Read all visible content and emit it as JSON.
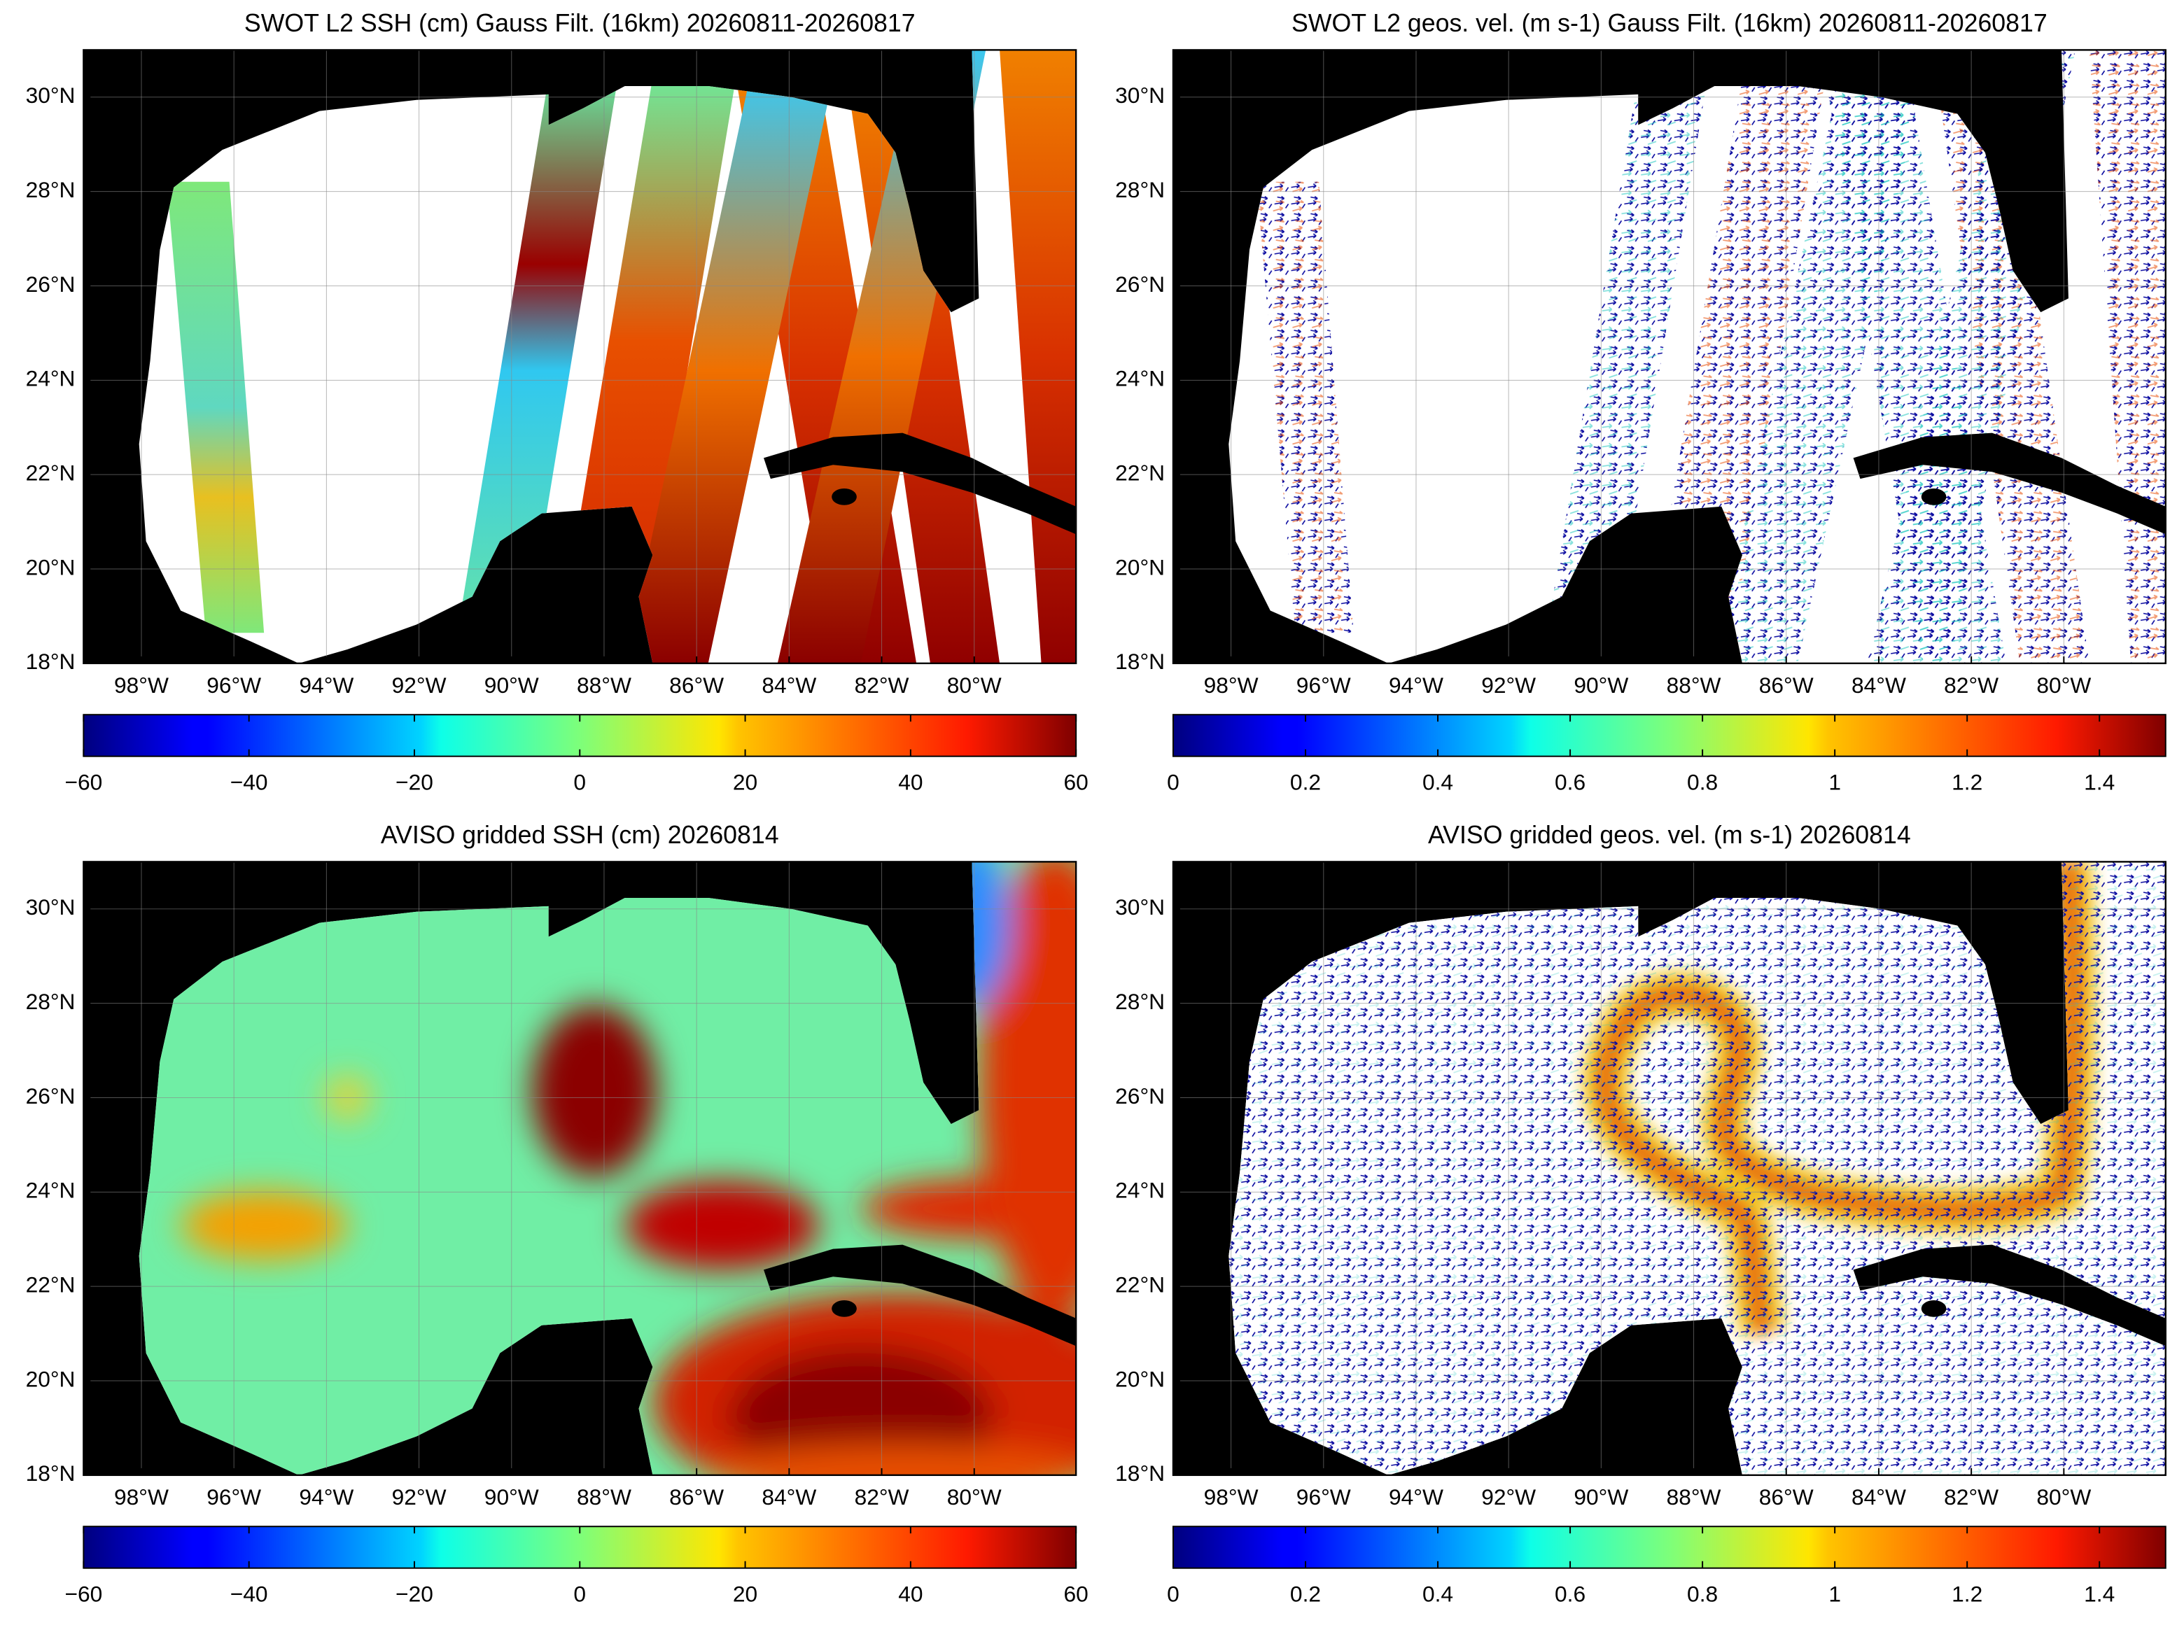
{
  "chart_data": [
    {
      "type": "map",
      "variant": "swath-ssh",
      "title": "SWOT L2 SSH (cm) Gauss Filt. (16km) 20260811-20260817",
      "xlim": [
        -99.25,
        -77.8
      ],
      "ylim": [
        18,
        31
      ],
      "xticks": [
        {
          "value": -98,
          "label": "98°W"
        },
        {
          "value": -96,
          "label": "96°W"
        },
        {
          "value": -94,
          "label": "94°W"
        },
        {
          "value": -92,
          "label": "92°W"
        },
        {
          "value": -90,
          "label": "90°W"
        },
        {
          "value": -88,
          "label": "88°W"
        },
        {
          "value": -86,
          "label": "86°W"
        },
        {
          "value": -84,
          "label": "84°W"
        },
        {
          "value": -82,
          "label": "82°W"
        },
        {
          "value": -80,
          "label": "80°W"
        }
      ],
      "yticks": [
        {
          "value": 18,
          "label": "18°N"
        },
        {
          "value": 20,
          "label": "20°N"
        },
        {
          "value": 22,
          "label": "22°N"
        },
        {
          "value": 24,
          "label": "24°N"
        },
        {
          "value": 26,
          "label": "26°N"
        },
        {
          "value": 28,
          "label": "28°N"
        },
        {
          "value": 30,
          "label": "30°N"
        }
      ],
      "grid": true,
      "colormap": "jet",
      "clim": [
        -60,
        60
      ],
      "cticks": [
        {
          "value": -60,
          "label": "−60"
        },
        {
          "value": -40,
          "label": "−40"
        },
        {
          "value": -20,
          "label": "−20"
        },
        0,
        20,
        40,
        60
      ]
    },
    {
      "type": "map",
      "variant": "swath-vel",
      "title": "SWOT L2 geos. vel. (m s-1) Gauss Filt. (16km) 20260811-20260817",
      "xlim": [
        -99.25,
        -77.8
      ],
      "ylim": [
        18,
        31
      ],
      "xticks": [
        {
          "value": -98,
          "label": "98°W"
        },
        {
          "value": -96,
          "label": "96°W"
        },
        {
          "value": -94,
          "label": "94°W"
        },
        {
          "value": -92,
          "label": "92°W"
        },
        {
          "value": -90,
          "label": "90°W"
        },
        {
          "value": -88,
          "label": "88°W"
        },
        {
          "value": -86,
          "label": "86°W"
        },
        {
          "value": -84,
          "label": "84°W"
        },
        {
          "value": -82,
          "label": "82°W"
        },
        {
          "value": -80,
          "label": "80°W"
        }
      ],
      "yticks": [
        {
          "value": 18,
          "label": "18°N"
        },
        {
          "value": 20,
          "label": "20°N"
        },
        {
          "value": 22,
          "label": "22°N"
        },
        {
          "value": 24,
          "label": "24°N"
        },
        {
          "value": 26,
          "label": "26°N"
        },
        {
          "value": 28,
          "label": "28°N"
        },
        {
          "value": 30,
          "label": "30°N"
        }
      ],
      "grid": true,
      "colormap": "jet",
      "clim": [
        0,
        1.5
      ],
      "cticks": [
        0,
        0.2,
        0.4,
        0.6,
        0.8,
        1,
        1.2,
        1.4
      ]
    },
    {
      "type": "map",
      "variant": "grid-ssh",
      "title": "AVISO gridded SSH (cm) 20260814",
      "xlim": [
        -99.25,
        -77.8
      ],
      "ylim": [
        18,
        31
      ],
      "xticks": [
        {
          "value": -98,
          "label": "98°W"
        },
        {
          "value": -96,
          "label": "96°W"
        },
        {
          "value": -94,
          "label": "94°W"
        },
        {
          "value": -92,
          "label": "92°W"
        },
        {
          "value": -90,
          "label": "90°W"
        },
        {
          "value": -88,
          "label": "88°W"
        },
        {
          "value": -86,
          "label": "86°W"
        },
        {
          "value": -84,
          "label": "84°W"
        },
        {
          "value": -82,
          "label": "82°W"
        },
        {
          "value": -80,
          "label": "80°W"
        }
      ],
      "yticks": [
        {
          "value": 18,
          "label": "18°N"
        },
        {
          "value": 20,
          "label": "20°N"
        },
        {
          "value": 22,
          "label": "22°N"
        },
        {
          "value": 24,
          "label": "24°N"
        },
        {
          "value": 26,
          "label": "26°N"
        },
        {
          "value": 28,
          "label": "28°N"
        },
        {
          "value": 30,
          "label": "30°N"
        }
      ],
      "grid": true,
      "colormap": "jet",
      "clim": [
        -60,
        60
      ],
      "cticks": [
        {
          "value": -60,
          "label": "−60"
        },
        {
          "value": -40,
          "label": "−40"
        },
        {
          "value": -20,
          "label": "−20"
        },
        0,
        20,
        40,
        60
      ]
    },
    {
      "type": "map",
      "variant": "grid-vel",
      "title": "AVISO gridded geos. vel. (m s-1)  20260814",
      "xlim": [
        -99.25,
        -77.8
      ],
      "ylim": [
        18,
        31
      ],
      "xticks": [
        {
          "value": -98,
          "label": "98°W"
        },
        {
          "value": -96,
          "label": "96°W"
        },
        {
          "value": -94,
          "label": "94°W"
        },
        {
          "value": -92,
          "label": "92°W"
        },
        {
          "value": -90,
          "label": "90°W"
        },
        {
          "value": -88,
          "label": "88°W"
        },
        {
          "value": -86,
          "label": "86°W"
        },
        {
          "value": -84,
          "label": "84°W"
        },
        {
          "value": -82,
          "label": "82°W"
        },
        {
          "value": -80,
          "label": "80°W"
        }
      ],
      "yticks": [
        {
          "value": 18,
          "label": "18°N"
        },
        {
          "value": 20,
          "label": "20°N"
        },
        {
          "value": 22,
          "label": "22°N"
        },
        {
          "value": 24,
          "label": "24°N"
        },
        {
          "value": 26,
          "label": "26°N"
        },
        {
          "value": 28,
          "label": "28°N"
        },
        {
          "value": 30,
          "label": "30°N"
        }
      ],
      "grid": true,
      "colormap": "jet",
      "clim": [
        0,
        1.5
      ],
      "cticks": [
        0,
        0.2,
        0.4,
        0.6,
        0.8,
        1,
        1.2,
        1.4
      ]
    }
  ]
}
